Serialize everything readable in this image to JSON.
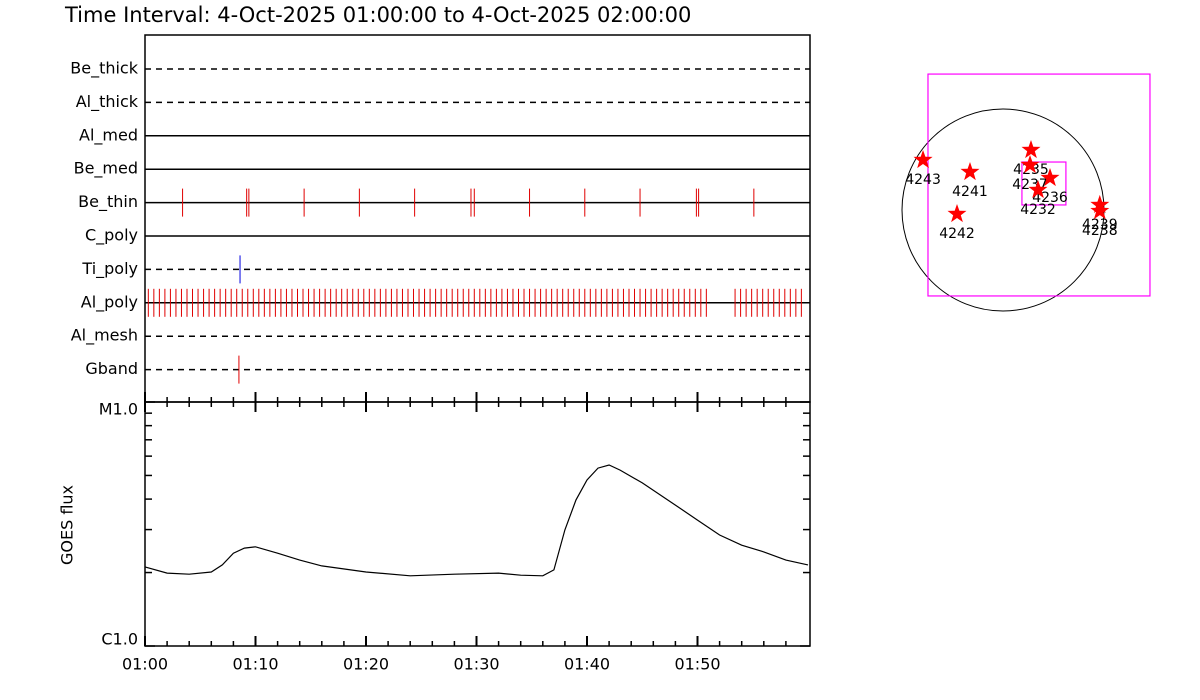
{
  "chart_data": [
    {
      "type": "timeline",
      "title": "Time Interval:  4-Oct-2025 01:00:00 to  4-Oct-2025 02:00:00",
      "categories": [
        "Be_thick",
        "Al_thick",
        "Al_med",
        "Be_med",
        "Be_thin",
        "C_poly",
        "Ti_poly",
        "Al_poly",
        "Al_mesh",
        "Gband"
      ],
      "line_styles": [
        "dashed",
        "dashed",
        "solid",
        "solid",
        "solid",
        "solid",
        "dashed",
        "solid",
        "dashed",
        "dashed"
      ],
      "event_colors": [
        "#e00000",
        "#e00000",
        "#e00000",
        "#e00000",
        "#e00000",
        "#e00000",
        "#0000e0",
        "#e00000",
        "#e00000",
        "#e00000"
      ],
      "events": [
        [],
        [],
        [],
        [],
        [
          3.4,
          9.2,
          9.4,
          14.4,
          19.4,
          24.4,
          29.5,
          29.8,
          34.8,
          39.8,
          44.8,
          49.9,
          50.1,
          55.1
        ],
        [],
        [
          8.6
        ],
        [
          0.3,
          0.8,
          1.3,
          1.8,
          2.3,
          2.8,
          3.3,
          3.8,
          4.3,
          4.8,
          5.3,
          5.8,
          6.3,
          6.8,
          7.3,
          7.8,
          8.3,
          8.8,
          9.3,
          9.8,
          10.3,
          10.8,
          11.3,
          11.8,
          12.3,
          12.8,
          13.3,
          13.8,
          14.3,
          14.8,
          15.3,
          15.8,
          16.3,
          16.8,
          17.3,
          17.8,
          18.3,
          18.8,
          19.3,
          19.8,
          20.3,
          20.8,
          21.3,
          21.8,
          22.3,
          22.8,
          23.3,
          23.8,
          24.3,
          24.8,
          25.3,
          25.8,
          26.3,
          26.8,
          27.3,
          27.8,
          28.3,
          28.8,
          29.3,
          29.8,
          30.3,
          30.8,
          31.3,
          31.8,
          32.3,
          32.8,
          33.3,
          33.8,
          34.3,
          34.8,
          35.3,
          35.8,
          36.3,
          36.8,
          37.3,
          37.8,
          38.3,
          38.8,
          39.3,
          39.8,
          40.3,
          40.8,
          41.3,
          41.8,
          42.3,
          42.8,
          43.3,
          43.8,
          44.3,
          44.8,
          45.3,
          45.8,
          46.3,
          46.8,
          47.3,
          47.8,
          48.3,
          48.8,
          49.3,
          49.8,
          50.3,
          50.8,
          53.4,
          53.9,
          54.4,
          54.9,
          55.4,
          55.9,
          56.4,
          56.9,
          57.4,
          57.9,
          58.4,
          58.9,
          59.4
        ],
        [],
        [
          8.5
        ]
      ],
      "xlim": [
        0,
        60
      ]
    },
    {
      "type": "line",
      "ylabel": "GOES flux",
      "x": [
        0,
        2,
        4,
        6,
        7,
        8,
        9,
        10,
        12,
        14,
        16,
        20,
        24,
        28,
        32,
        34,
        36,
        37,
        38,
        39,
        40,
        41,
        42,
        43,
        45,
        48,
        50,
        52,
        54,
        56,
        58,
        60
      ],
      "values": [
        2.11e-06,
        1.99e-06,
        1.97e-06,
        2.01e-06,
        2.15e-06,
        2.4e-06,
        2.52e-06,
        2.55e-06,
        2.4e-06,
        2.25e-06,
        2.13e-06,
        2.01e-06,
        1.94e-06,
        1.97e-06,
        1.99e-06,
        1.95e-06,
        1.94e-06,
        2.05e-06,
        2.99e-06,
        3.97e-06,
        4.79e-06,
        5.36e-06,
        5.52e-06,
        5.26e-06,
        4.66e-06,
        3.78e-06,
        3.28e-06,
        2.85e-06,
        2.59e-06,
        2.43e-06,
        2.25e-06,
        2.15e-06
      ],
      "color": "#000000",
      "xlim": [
        0,
        60
      ],
      "xticks": [
        {
          "value": 0,
          "label": "01:00"
        },
        {
          "value": 10,
          "label": "01:10"
        },
        {
          "value": 20,
          "label": "01:20"
        },
        {
          "value": 30,
          "label": "01:30"
        },
        {
          "value": 40,
          "label": "01:40"
        },
        {
          "value": 50,
          "label": "01:50"
        }
      ],
      "xminorticks": [
        2,
        4,
        6,
        8,
        12,
        14,
        16,
        18,
        22,
        24,
        26,
        28,
        32,
        34,
        36,
        38,
        42,
        44,
        46,
        48,
        52,
        54,
        56,
        58
      ],
      "ylim": [
        1e-06,
        1e-05
      ],
      "log_y": true,
      "yticks": [
        {
          "value": 1e-06,
          "label": "C1.0"
        },
        {
          "value": 1e-05,
          "label": "M1.0"
        }
      ],
      "yminorticks": [
        2e-06,
        3e-06,
        4e-06,
        5e-06,
        6e-06,
        7e-06,
        8e-06,
        9e-06
      ]
    },
    {
      "type": "map",
      "labels": [
        "4243",
        "4241",
        "4242",
        "4235",
        "4237",
        "4236",
        "4232",
        "4239",
        "4238"
      ],
      "x": [
        -760,
        -314,
        -437,
        266,
        257,
        447,
        333,
        920,
        920
      ],
      "y": [
        475,
        361,
        -38,
        570,
        428,
        304,
        190,
        48,
        -10
      ],
      "star_color": "#ff0000",
      "disk_radius": 960,
      "boxes": [
        [
          -713,
          -817,
          1397,
          1292
        ],
        [
          180,
          48,
          598,
          456
        ]
      ],
      "box_color": "#ff00ff"
    }
  ]
}
